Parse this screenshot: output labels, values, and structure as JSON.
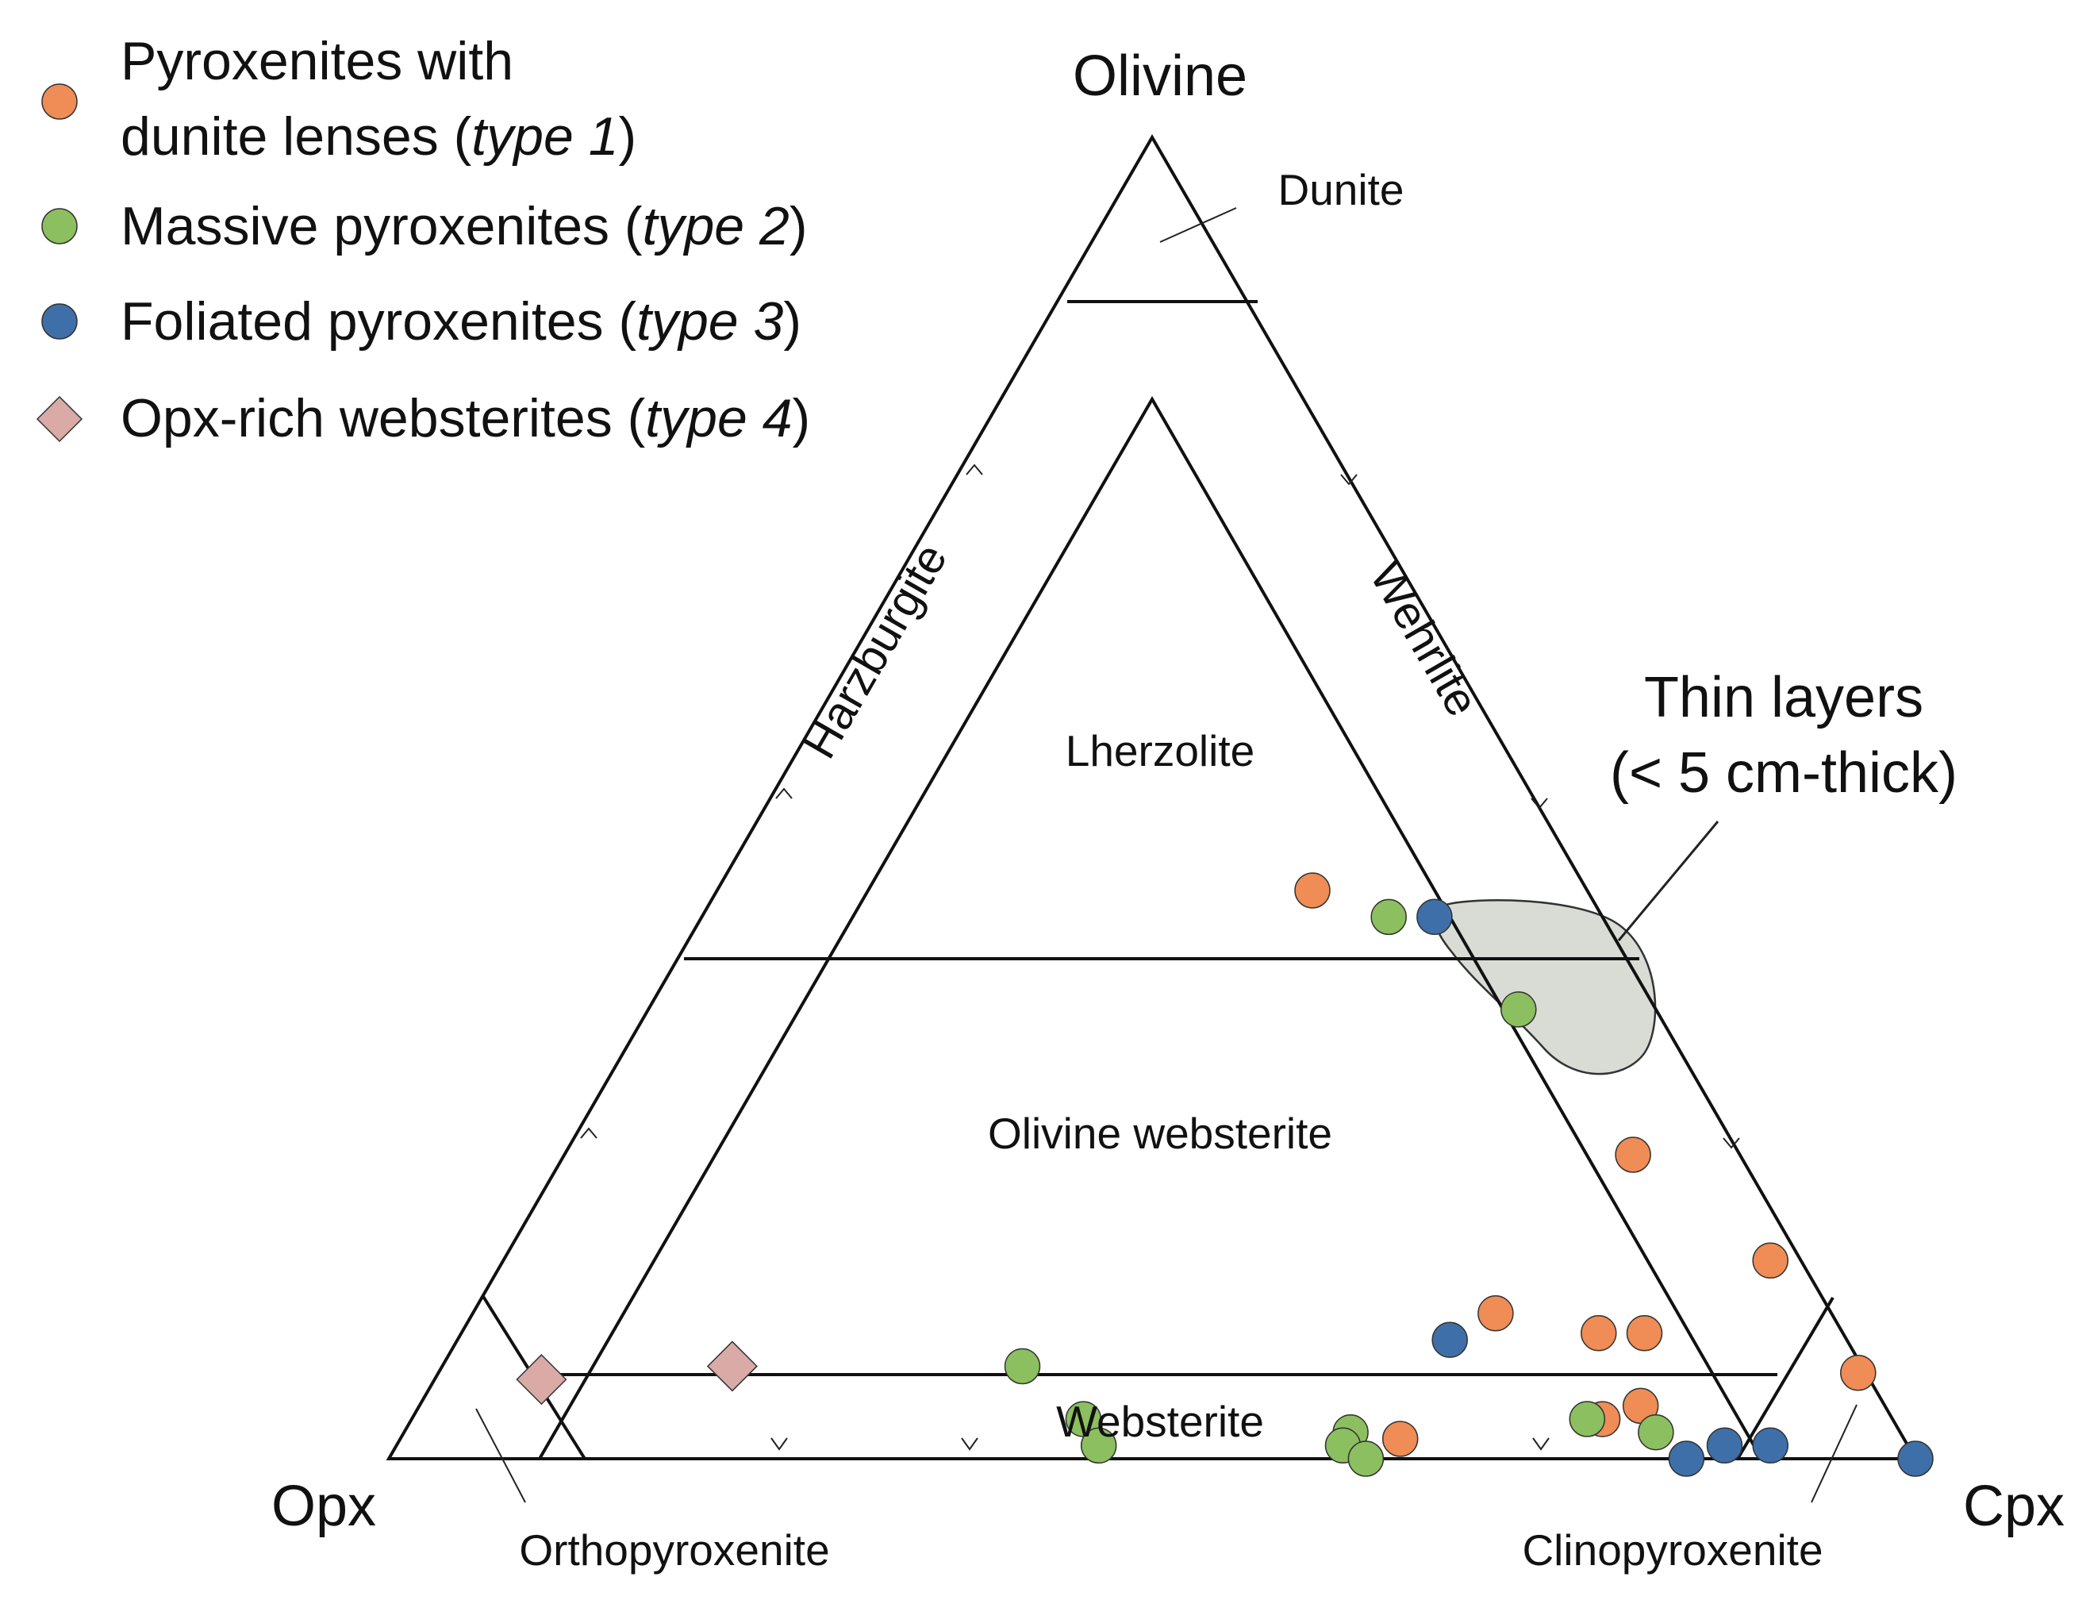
{
  "legend": {
    "type1_line1": "Pyroxenites with",
    "type1_line2_pre": "dunite lenses (",
    "type1_italic": "type 1",
    "type1_post": ")",
    "type2_pre": "Massive pyroxenites (",
    "type2_italic": "type 2",
    "type2_post": ")",
    "type3_pre": "Foliated pyroxenites (",
    "type3_italic": "type 3",
    "type3_post": ")",
    "type4_pre": "Opx-rich websterites (",
    "type4_italic": "type 4",
    "type4_post": ")"
  },
  "vertices": {
    "top": "Olivine",
    "left": "Opx",
    "right": "Cpx"
  },
  "fields": {
    "dunite": "Dunite",
    "harzburgite": "Harzburgite",
    "wehrlite": "Wehrlite",
    "lherzolite": "Lherzolite",
    "olivine_websterite": "Olivine websterite",
    "websterite": "Websterite",
    "orthopyroxenite": "Orthopyroxenite",
    "clinopyroxenite": "Clinopyroxenite"
  },
  "annotation": {
    "line1": "Thin layers",
    "line2": "(< 5 cm-thick)"
  },
  "colors": {
    "type1": "#f08c55",
    "type2": "#8cbf5f",
    "type3": "#3f6fa8",
    "type4": "#d9aaa6",
    "thin_layer_fill": "#d8dcd5"
  },
  "chart_data": {
    "type": "ternary",
    "apices": [
      "Olivine",
      "Opx",
      "Cpx"
    ],
    "units": "modal %",
    "series": [
      {
        "name": "Pyroxenites with dunite lenses (type 1)",
        "marker": "circle",
        "color": "#f08c55",
        "points": [
          {
            "ol": 43,
            "opx": 18,
            "cpx": 39
          },
          {
            "ol": 23,
            "opx": 7,
            "cpx": 70
          },
          {
            "ol": 15,
            "opx": 2,
            "cpx": 83
          },
          {
            "ol": 11,
            "opx": 22,
            "cpx": 67
          },
          {
            "ol": 9.5,
            "opx": 16,
            "cpx": 74.5
          },
          {
            "ol": 9.5,
            "opx": 13,
            "cpx": 77.5
          },
          {
            "ol": 6.5,
            "opx": 0.5,
            "cpx": 93
          },
          {
            "ol": 4,
            "opx": 16,
            "cpx": 80
          },
          {
            "ol": 1.5,
            "opx": 33,
            "cpx": 65.5
          },
          {
            "ol": 3,
            "opx": 19,
            "cpx": 78
          }
        ]
      },
      {
        "name": "Massive pyroxenites (type 2)",
        "marker": "circle",
        "color": "#8cbf5f",
        "points": [
          {
            "ol": 41,
            "opx": 14,
            "cpx": 45
          },
          {
            "ol": 34,
            "opx": 9,
            "cpx": 57
          },
          {
            "ol": 7,
            "opx": 55,
            "cpx": 38
          },
          {
            "ol": 3,
            "opx": 53,
            "cpx": 44
          },
          {
            "ol": 1,
            "opx": 53,
            "cpx": 46
          },
          {
            "ol": 2,
            "opx": 36,
            "cpx": 62
          },
          {
            "ol": 1,
            "opx": 37,
            "cpx": 62
          },
          {
            "ol": 0,
            "opx": 36,
            "cpx": 64
          },
          {
            "ol": 3,
            "opx": 20,
            "cpx": 77
          },
          {
            "ol": 2,
            "opx": 16,
            "cpx": 82
          }
        ]
      },
      {
        "name": "Foliated pyroxenites (type 3)",
        "marker": "circle",
        "color": "#3f6fa8",
        "points": [
          {
            "ol": 41,
            "opx": 11,
            "cpx": 48
          },
          {
            "ol": 9,
            "opx": 26,
            "cpx": 65
          },
          {
            "ol": 1,
            "opx": 12,
            "cpx": 87
          },
          {
            "ol": 1,
            "opx": 9,
            "cpx": 90
          },
          {
            "ol": 0,
            "opx": 15,
            "cpx": 85
          },
          {
            "ol": 0,
            "opx": 0,
            "cpx": 100
          }
        ]
      },
      {
        "name": "Opx-rich websterites (type 4)",
        "marker": "diamond",
        "color": "#d9aaa6",
        "points": [
          {
            "ol": 6,
            "opx": 87,
            "cpx": 7
          },
          {
            "ol": 7,
            "opx": 74,
            "cpx": 19
          }
        ]
      }
    ],
    "field_boundaries": {
      "dunite_olivine_min": 90,
      "lherzolite_olivine_min": 40,
      "websterite_olivine_max": 5,
      "pyroxenite_pyroxene_min": 90
    }
  }
}
